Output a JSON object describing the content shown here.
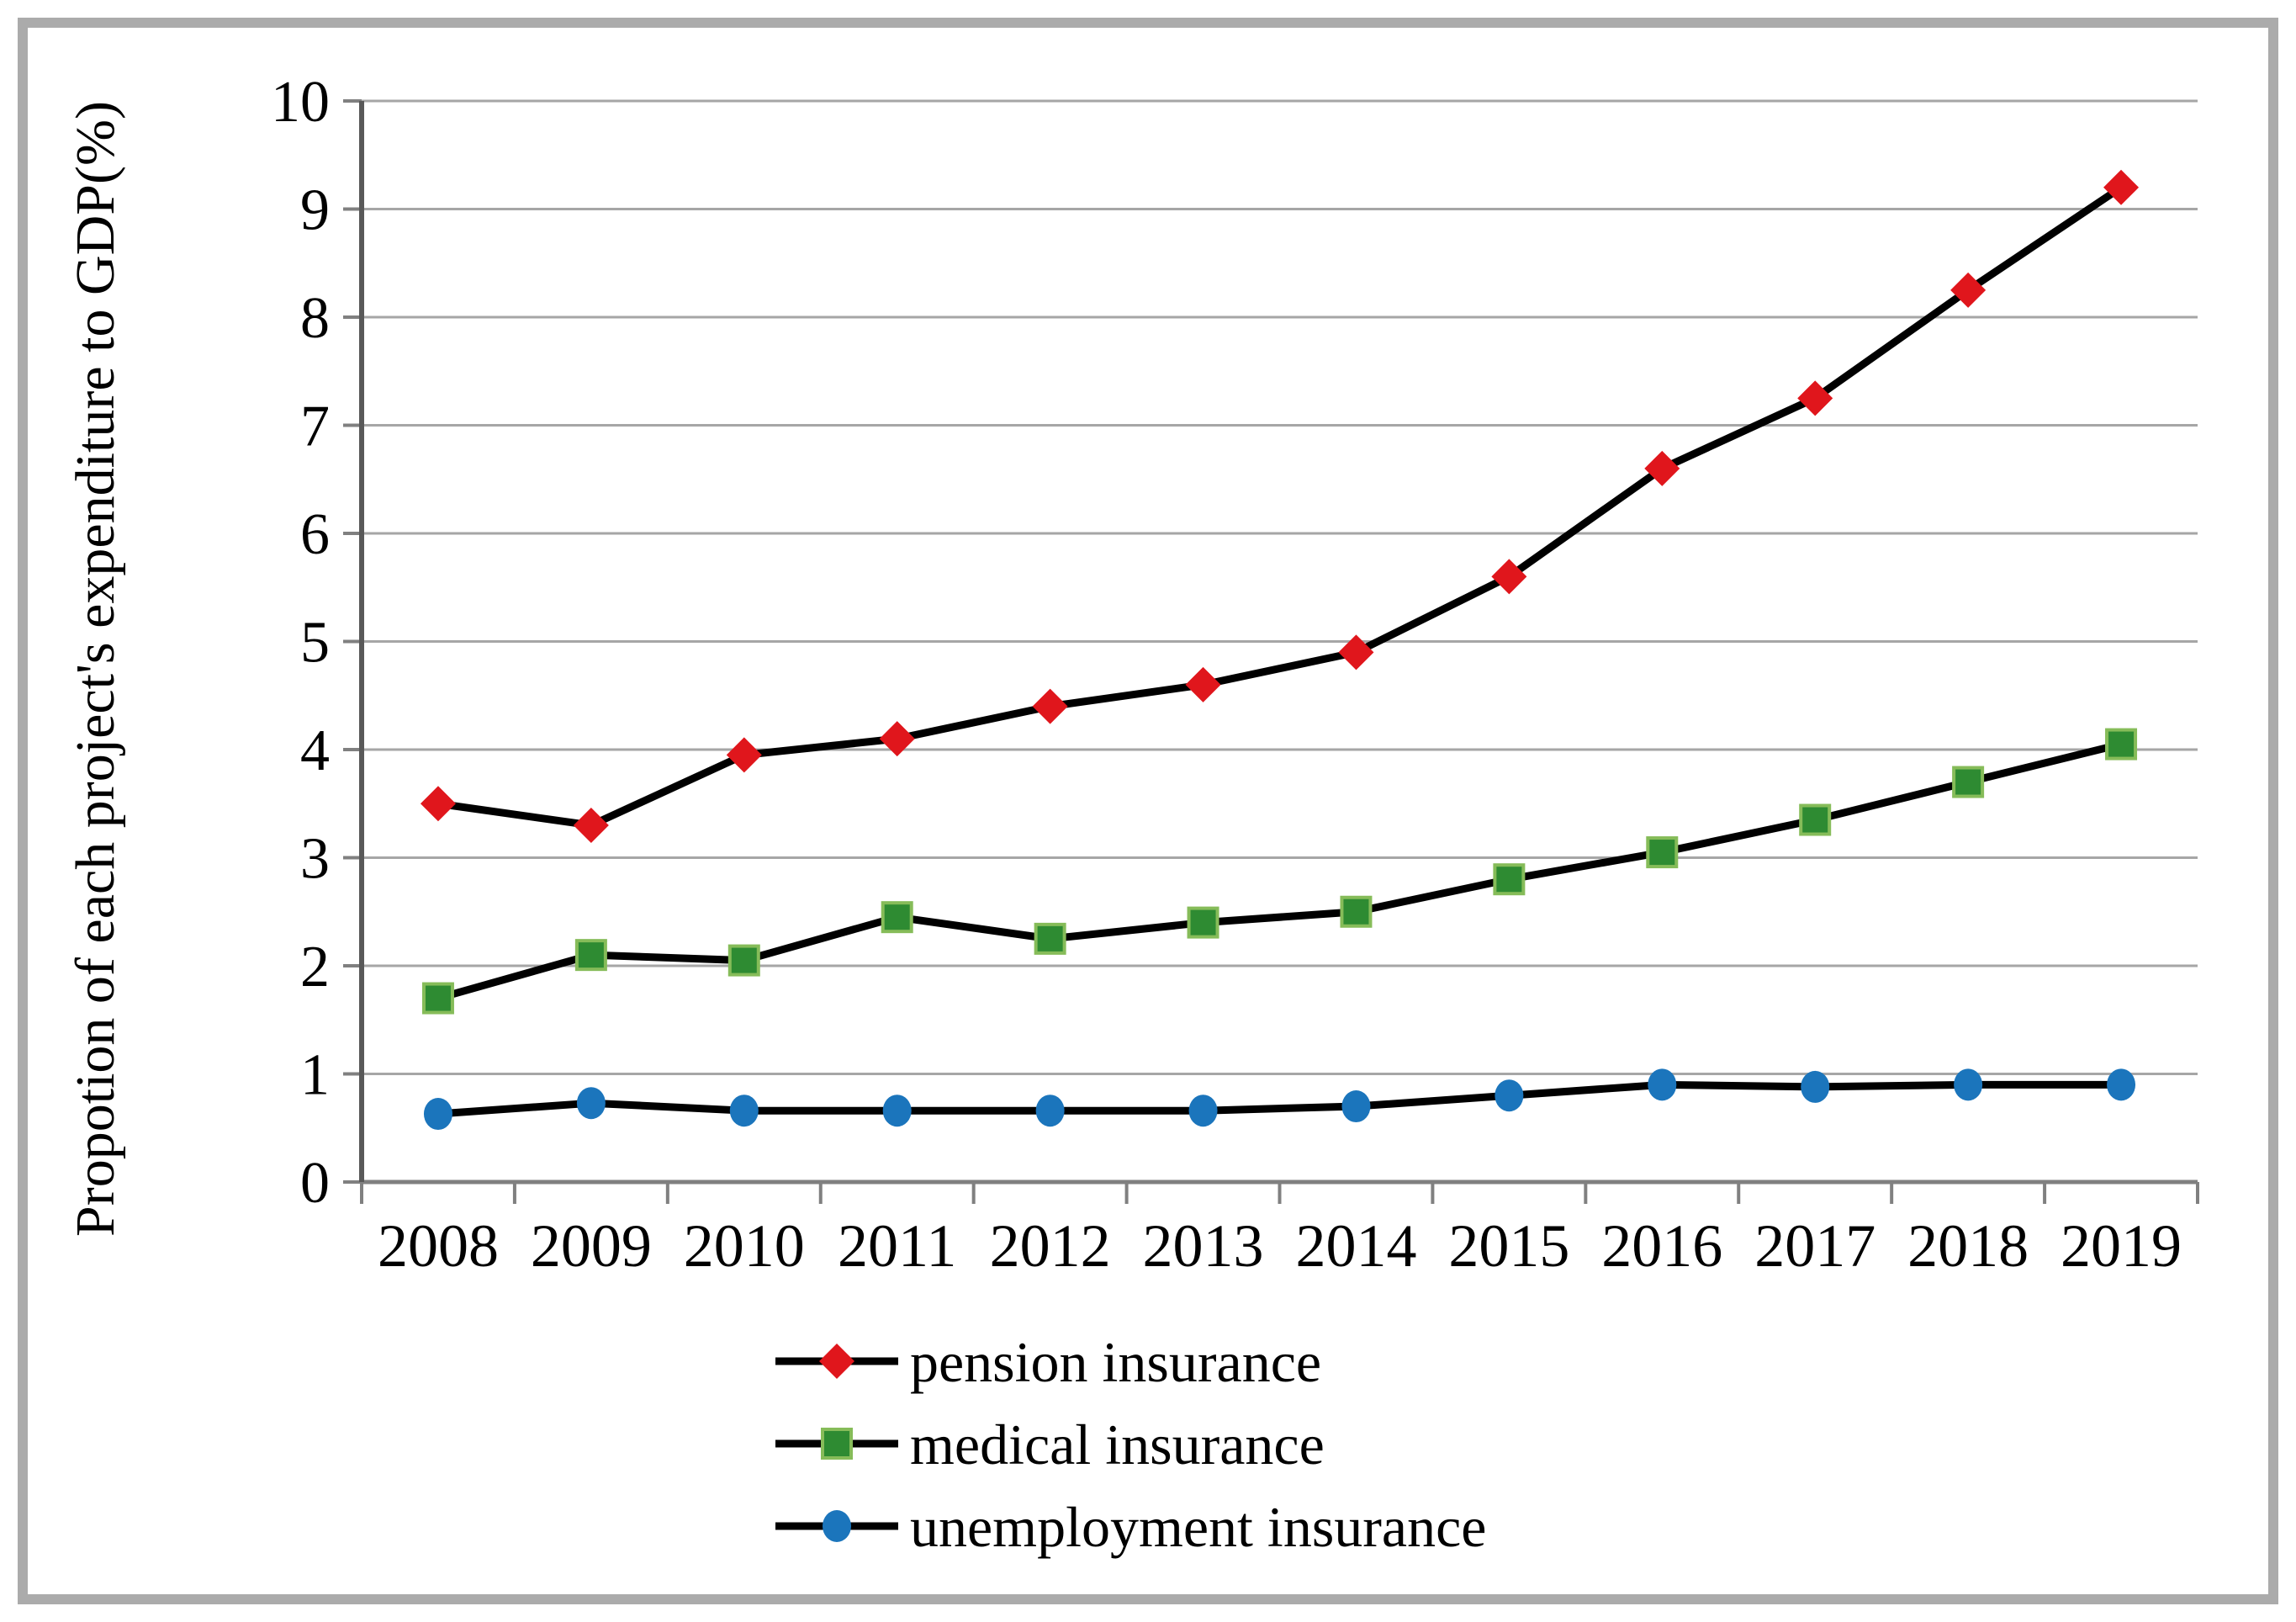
{
  "colors": {
    "background": "#FFFFFF",
    "frame_border": "#ABABAB",
    "gridline": "#A6A6A6",
    "x_axis": "#808080",
    "y_axis": "#595959",
    "tick": "#808080",
    "series_line": "#000000",
    "text": "#000000",
    "pension_marker": "#E0161C",
    "medical_marker_fill": "#2E8B32",
    "medical_marker_border": "#86BC59",
    "unemployment_marker": "#1B75BC"
  },
  "chart_data": {
    "type": "line",
    "title": "",
    "xlabel": "",
    "ylabel": "Propotion of each project's expenditure to GDP(%)",
    "ylim": [
      0,
      10
    ],
    "ytick_step": 1,
    "grid": "horizontal",
    "legend_position": "bottom-center",
    "categories": [
      "2008",
      "2009",
      "2010",
      "2011",
      "2012",
      "2013",
      "2014",
      "2015",
      "2016",
      "2017",
      "2018",
      "2019"
    ],
    "series": [
      {
        "name": "pension insurance",
        "marker": "diamond",
        "marker_color": "#E0161C",
        "values": [
          3.5,
          3.3,
          3.95,
          4.1,
          4.4,
          4.6,
          4.9,
          5.6,
          6.6,
          7.25,
          8.25,
          9.2
        ]
      },
      {
        "name": "medical insurance",
        "marker": "square",
        "marker_color": "#2E8B32",
        "marker_border": "#86BC59",
        "values": [
          1.7,
          2.1,
          2.05,
          2.45,
          2.25,
          2.4,
          2.5,
          2.8,
          3.05,
          3.35,
          3.7,
          4.05
        ]
      },
      {
        "name": "unemployment insurance",
        "marker": "circle",
        "marker_color": "#1B75BC",
        "values": [
          0.63,
          0.73,
          0.66,
          0.66,
          0.66,
          0.66,
          0.7,
          0.8,
          0.9,
          0.88,
          0.9,
          0.9
        ]
      }
    ]
  }
}
